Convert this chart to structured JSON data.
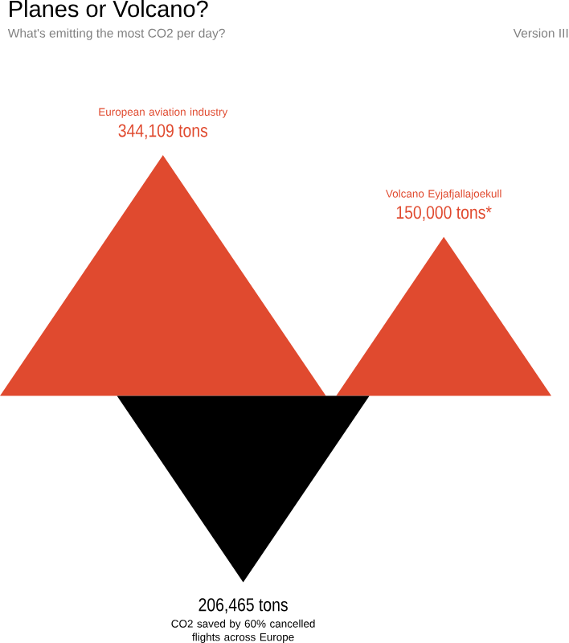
{
  "chart_data": {
    "type": "other",
    "title": "Planes or Volcano?",
    "subtitle": "What's emitting the most CO2 per day?",
    "annotations": [
      "Version III"
    ],
    "categories": [
      "European aviation industry",
      "Volcano Eyjafjallajoekull",
      "CO2 saved by 60% cancelled flights across Europe"
    ],
    "values": [
      344109,
      150000,
      206465
    ],
    "value_labels": [
      "344,109 tons",
      "150,000 tons*",
      "206,465 tons"
    ],
    "colors": [
      "#e04a2f",
      "#e04a2f",
      "#000000"
    ]
  }
}
